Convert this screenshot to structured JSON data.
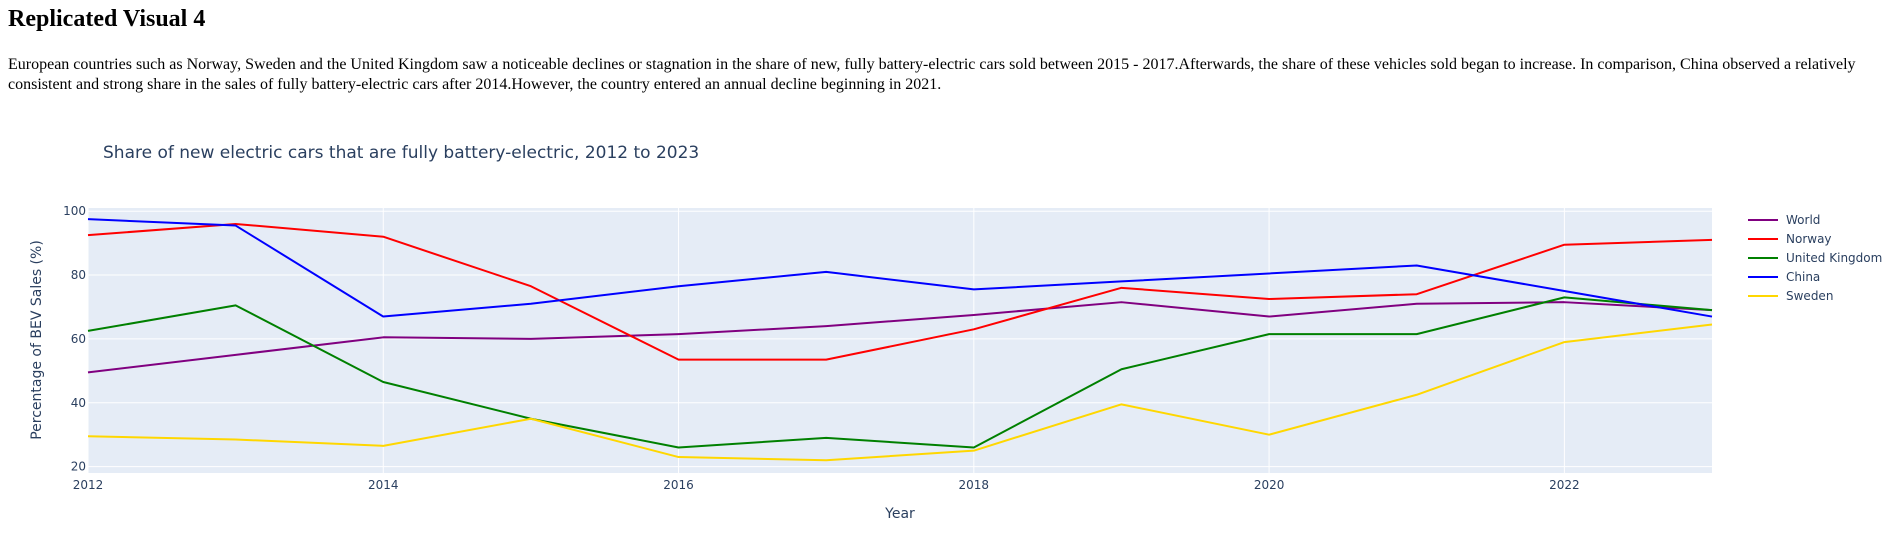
{
  "page": {
    "heading": "Replicated Visual 4",
    "description": "European countries such as Norway, Sweden and the United Kingdom saw a noticeable declines or stagnation in the share of new, fully battery-electric cars sold between 2015 - 2017.Afterwards, the share of these vehicles sold began to increase. In comparison, China observed a relatively consistent and strong share in the sales of fully battery-electric cars after 2014.However, the country entered an annual decline beginning in 2021."
  },
  "chart_data": {
    "type": "line",
    "title": "Share of new electric cars that are fully battery-electric, 2012 to 2023",
    "xlabel": "Year",
    "ylabel": "Percentage of BEV Sales (%)",
    "xlim": [
      2012,
      2023
    ],
    "ylim": [
      18,
      101
    ],
    "xticks": [
      2012,
      2014,
      2016,
      2018,
      2020,
      2022
    ],
    "yticks": [
      20,
      40,
      60,
      80,
      100
    ],
    "grid": true,
    "legend_position": "right",
    "background": "#e5ecf6",
    "x": [
      2012,
      2013,
      2014,
      2015,
      2016,
      2017,
      2018,
      2019,
      2020,
      2021,
      2022,
      2023
    ],
    "series": [
      {
        "name": "World",
        "color": "#800080",
        "values": [
          49.5,
          55,
          60.5,
          60,
          61.5,
          64,
          67.5,
          71.5,
          67,
          71,
          71.5,
          69
        ]
      },
      {
        "name": "Norway",
        "color": "#ff0000",
        "values": [
          92.5,
          96,
          92,
          76.5,
          53.5,
          53.5,
          63,
          76,
          72.5,
          74,
          89.5,
          91
        ]
      },
      {
        "name": "United Kingdom",
        "color": "#008000",
        "values": [
          62.5,
          70.5,
          46.5,
          35,
          26,
          29,
          26,
          50.5,
          61.5,
          61.5,
          73,
          69
        ]
      },
      {
        "name": "China",
        "color": "#0000ff",
        "values": [
          97.5,
          95.5,
          67,
          71,
          76.5,
          81,
          75.5,
          78,
          80.5,
          83,
          75,
          67
        ]
      },
      {
        "name": "Sweden",
        "color": "#ffd700",
        "values": [
          29.5,
          28.5,
          26.5,
          35,
          23,
          22,
          25,
          39.5,
          30,
          42.5,
          59,
          64.5
        ]
      }
    ]
  }
}
